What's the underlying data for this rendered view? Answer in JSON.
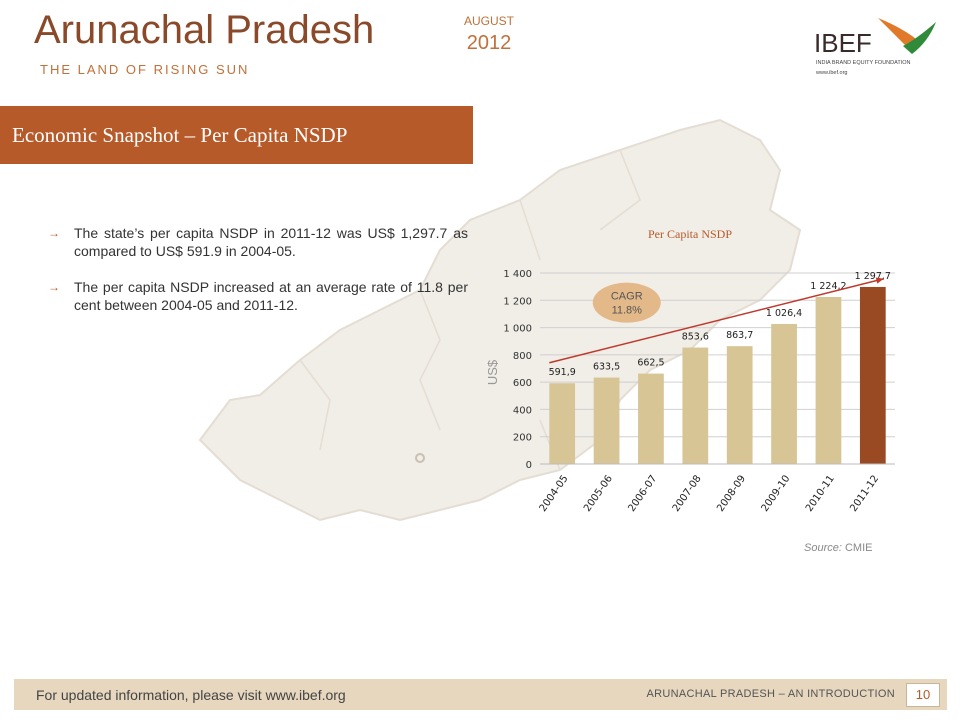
{
  "header": {
    "title": "Arunachal Pradesh",
    "subtitle": "THE LAND OF RISING SUN",
    "month": "AUGUST",
    "year": "2012",
    "logo_text": "IBEF",
    "logo_tagline": "INDIA BRAND EQUITY FOUNDATION",
    "logo_url": "www.ibef.org"
  },
  "section": {
    "title": "Economic Snapshot – Per Capita NSDP"
  },
  "bullets": [
    "The state’s per capita NSDP in 2011-12 was US$ 1,297.7 as compared to US$ 591.9 in 2004-05.",
    "The per capita NSDP increased at an average rate of 11.8 per cent between 2004-05 and 2011-12."
  ],
  "chart_data": {
    "type": "bar",
    "title": "Per Capita NSDP",
    "ylabel": "US$",
    "xlabel": "",
    "categories": [
      "2004-05",
      "2005-06",
      "2006-07",
      "2007-08",
      "2008-09",
      "2009-10",
      "2010-11",
      "2011-12"
    ],
    "values": [
      591.9,
      633.5,
      662.5,
      853.6,
      863.7,
      1026.4,
      1224.2,
      1297.7
    ],
    "value_labels": [
      "591,9",
      "633,5",
      "662,5",
      "853,6",
      "863,7",
      "1 026,4",
      "1 224,2",
      "1 297,7"
    ],
    "yticks": [
      0,
      200,
      400,
      600,
      800,
      1000,
      1200,
      1400
    ],
    "ytick_labels": [
      "0",
      "200",
      "400",
      "600",
      "800",
      "1 000",
      "1 200",
      "1 400"
    ],
    "ylim": [
      0,
      1400
    ],
    "grid": true,
    "annotation": {
      "label": "CAGR",
      "value": "11.8%"
    },
    "colors": {
      "bar": "#d8c595",
      "highlight": "#9a4a22",
      "trend": "#c0392b",
      "cagr_bubble": "#e3b98a"
    }
  },
  "source": {
    "label": "Source:",
    "value": "CMIE"
  },
  "footer": {
    "left": "For updated information, please visit www.ibef.org",
    "right": "ARUNACHAL PRADESH – AN INTRODUCTION",
    "page": "10"
  }
}
